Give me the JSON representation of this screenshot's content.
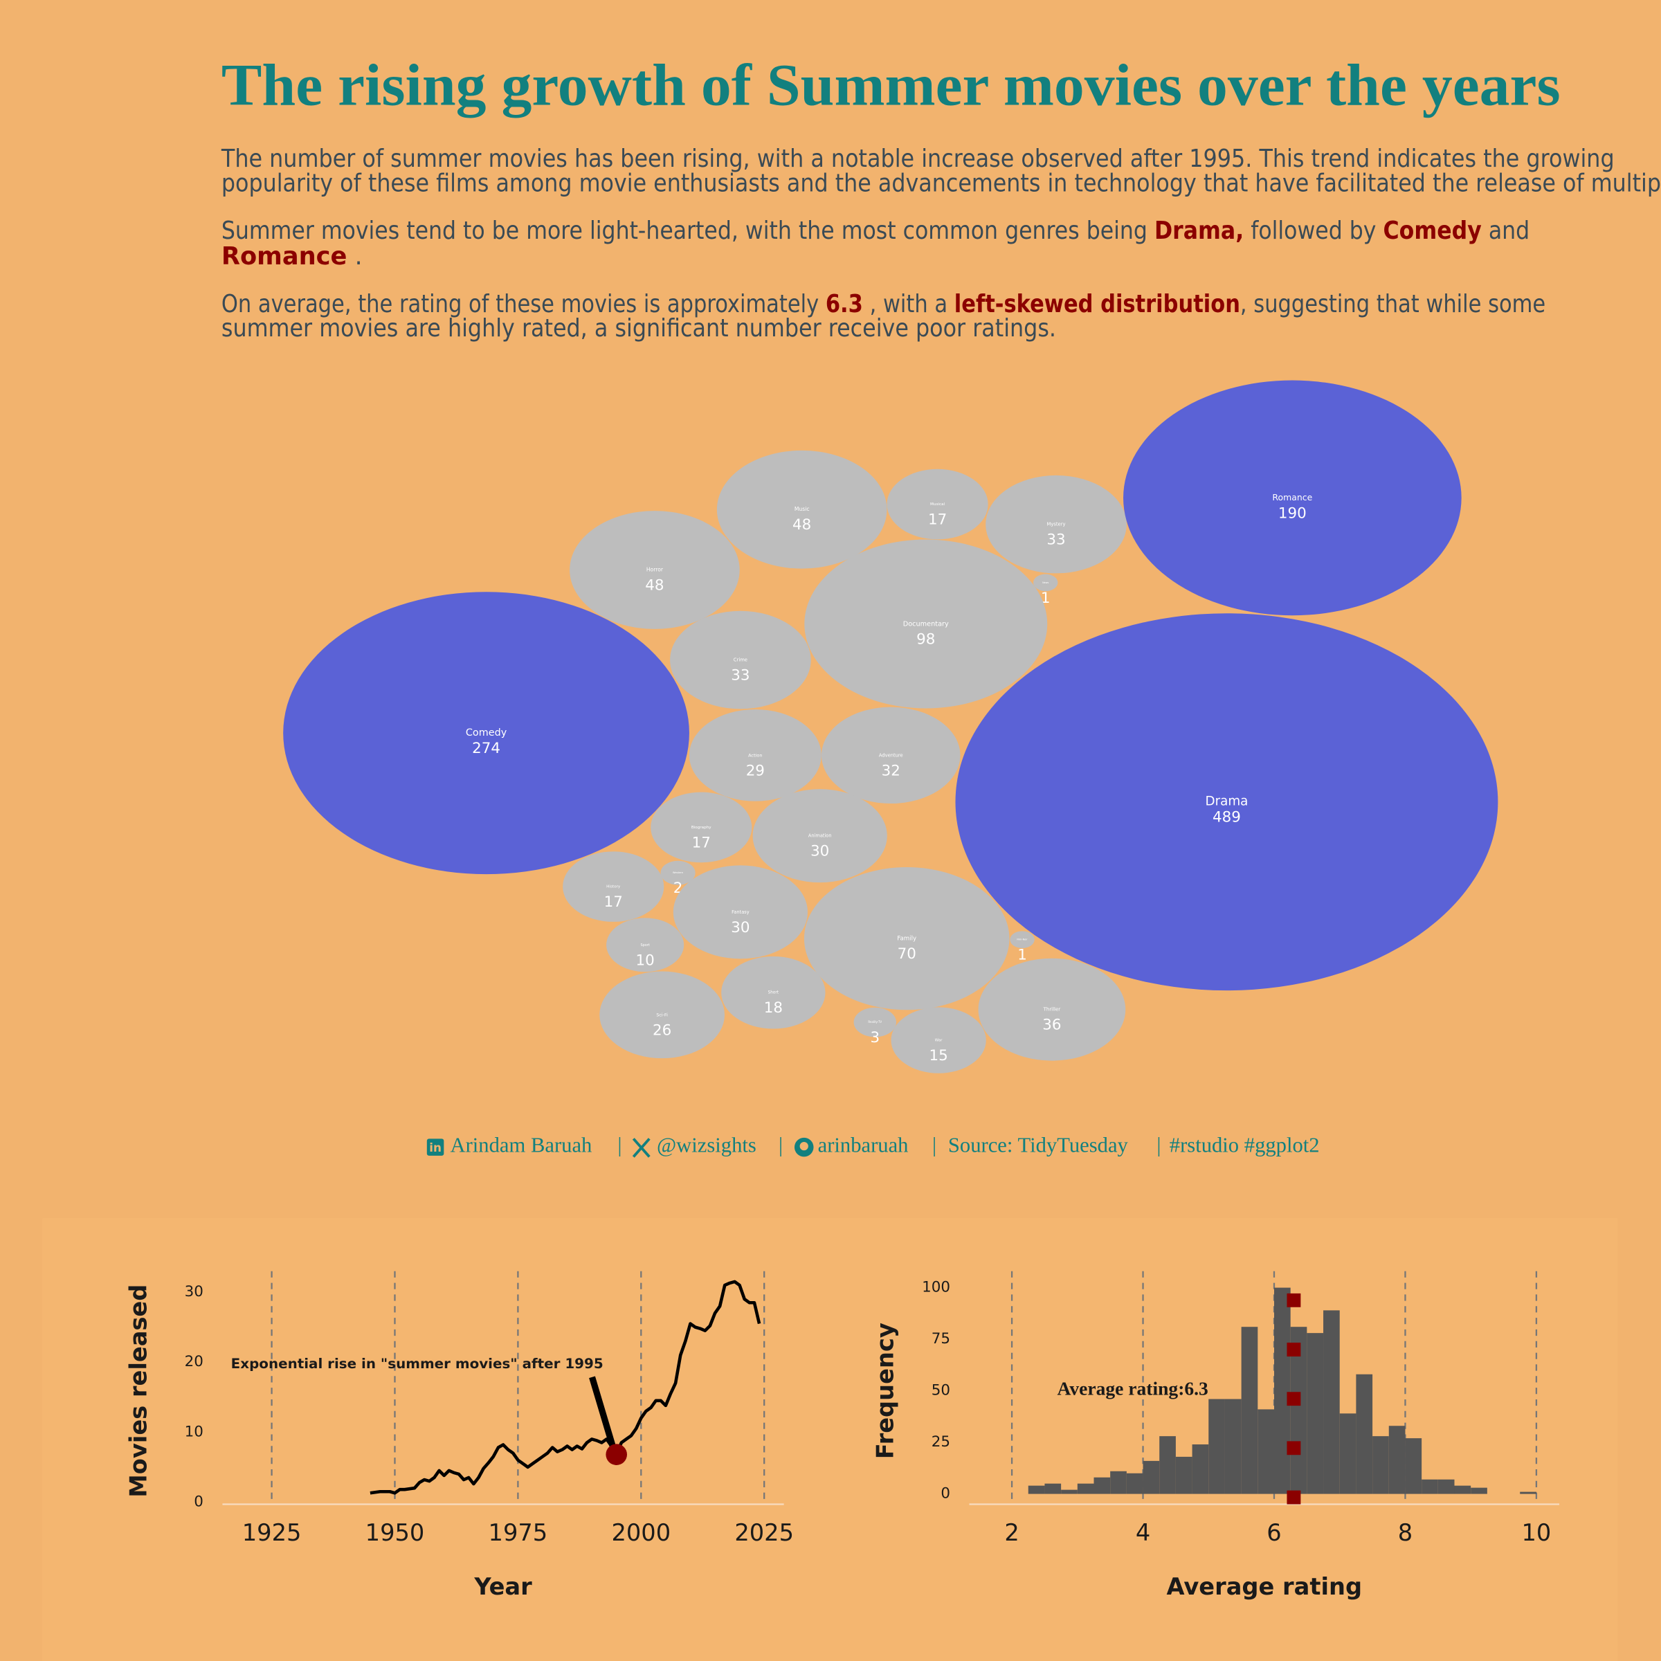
{
  "header": {
    "title": "The rising growth of Summer movies over the years",
    "highlight_color": "#8b0000",
    "paragraphs": [
      [
        [
          {
            "text": "The number of summer movies has been rising, with a notable increase observed after 1995. This trend indicates the growing",
            "highlight": false
          }
        ],
        [
          {
            "text": "popularity of these films among movie enthusiasts and the advancements in technology that have facilitated the release of multip",
            "highlight": false
          }
        ]
      ],
      [
        [
          {
            "text": "Summer movies tend to be more light-hearted, with the most common genres being ",
            "highlight": false
          },
          {
            "text": "Drama,",
            "highlight": true
          },
          {
            "text": " followed by ",
            "highlight": false
          },
          {
            "text": "Comedy",
            "highlight": true
          },
          {
            "text": " and",
            "highlight": false
          }
        ],
        [
          {
            "text": "Romance",
            "highlight": true
          },
          {
            "text": "   .",
            "highlight": false
          }
        ]
      ],
      [
        [
          {
            "text": "On average, the rating of these movies is approximately ",
            "highlight": false
          },
          {
            "text": "6.3",
            "highlight": true
          },
          {
            "text": " , with a ",
            "highlight": false
          },
          {
            "text": "left-skewed distribution",
            "highlight": true
          },
          {
            "text": ", suggesting that while some",
            "highlight": false
          }
        ],
        [
          {
            "text": "summer movies are highly rated, a significant number receive poor ratings.",
            "highlight": false
          }
        ]
      ]
    ]
  },
  "chart_data": [
    {
      "type": "bubble",
      "categories": [
        "Music",
        "Horror",
        "Musical",
        "Mystery",
        "Romance",
        "News",
        "Documentary",
        "Crime",
        "Comedy",
        "Action",
        "Adventure",
        "Drama",
        "Biography",
        "Animation",
        "History",
        "Western",
        "Fantasy",
        "Family",
        "Film-Noir",
        "Sport",
        "Sci-Fi",
        "Short",
        "Reality-TV",
        "War",
        "Thriller"
      ],
      "values": [
        48,
        48,
        17,
        33,
        190,
        1,
        98,
        33,
        274,
        29,
        32,
        489,
        17,
        30,
        17,
        2,
        30,
        70,
        1,
        10,
        26,
        18,
        3,
        15,
        36
      ],
      "colors": [
        "#bdbdbd",
        "#bdbdbd",
        "#bdbdbd",
        "#bdbdbd",
        "#5b62d6",
        "#bdbdbd",
        "#bdbdbd",
        "#bdbdbd",
        "#5b62d6",
        "#bdbdbd",
        "#bdbdbd",
        "#5b62d6",
        "#bdbdbd",
        "#bdbdbd",
        "#bdbdbd",
        "#bdbdbd",
        "#bdbdbd",
        "#bdbdbd",
        "#bdbdbd",
        "#bdbdbd",
        "#bdbdbd",
        "#bdbdbd",
        "#bdbdbd",
        "#bdbdbd",
        "#bdbdbd"
      ]
    },
    {
      "type": "line",
      "xlabel": "Year",
      "ylabel": "Movies released",
      "color": "#000000",
      "annotation": "Exponential rise in \"summer movies\" after 1995",
      "highlight_x": 1995,
      "highlight_color": "#8b0000",
      "x": [
        1945,
        1946,
        1947,
        1948,
        1949,
        1950,
        1951,
        1952,
        1953,
        1954,
        1955,
        1956,
        1957,
        1958,
        1959,
        1960,
        1961,
        1962,
        1963,
        1964,
        1965,
        1966,
        1967,
        1968,
        1969,
        1970,
        1971,
        1972,
        1973,
        1974,
        1975,
        1976,
        1977,
        1978,
        1979,
        1980,
        1981,
        1982,
        1983,
        1984,
        1985,
        1986,
        1987,
        1988,
        1989,
        1990,
        1991,
        1992,
        1993,
        1994,
        1995,
        1996,
        1997,
        1998,
        1999,
        2000,
        2001,
        2002,
        2003,
        2004,
        2005,
        2006,
        2007,
        2008,
        2009,
        2010,
        2011,
        2012,
        2013,
        2014,
        2015,
        2016,
        2017,
        2018,
        2019,
        2020,
        2021,
        2022,
        2023,
        2024
      ],
      "values": [
        1.3,
        1.4,
        1.5,
        1.5,
        1.5,
        1.3,
        1.8,
        1.8,
        1.9,
        2.0,
        2.8,
        3.2,
        3.0,
        3.5,
        4.5,
        3.8,
        4.5,
        4.2,
        4.0,
        3.2,
        3.5,
        2.6,
        3.5,
        4.8,
        5.6,
        6.5,
        7.8,
        8.2,
        7.5,
        7.0,
        6.0,
        5.5,
        5.0,
        5.5,
        6.0,
        6.5,
        7.0,
        7.8,
        7.2,
        7.5,
        8.0,
        7.5,
        8.0,
        7.6,
        8.5,
        9.0,
        8.8,
        8.5,
        9.0,
        8.0,
        6.8,
        8.5,
        9.0,
        9.5,
        10.5,
        12,
        13,
        13.5,
        14.5,
        14.5,
        13.8,
        15.5,
        17,
        21,
        23,
        25.5,
        25,
        24.8,
        24.5,
        25.2,
        27,
        28,
        31,
        31.3,
        31.5,
        31,
        29,
        28.5,
        28.5,
        25.5
      ],
      "xlim": [
        1915,
        2029
      ],
      "ylim": [
        0,
        33
      ],
      "xticks": [
        1925,
        1950,
        1975,
        2000,
        2025
      ],
      "yticks": [
        0,
        10,
        20,
        30
      ],
      "grid": "x"
    },
    {
      "type": "histogram",
      "xlabel": "Average rating",
      "ylabel": "Frequency",
      "color": "#555555",
      "bins": [
        2.25,
        2.5,
        2.75,
        3.0,
        3.25,
        3.5,
        3.75,
        4.0,
        4.25,
        4.5,
        4.75,
        5.0,
        5.25,
        5.5,
        5.75,
        6.0,
        6.25,
        6.5,
        6.75,
        7.0,
        7.25,
        7.5,
        7.75,
        8.0,
        8.25,
        8.5,
        8.75,
        9.0,
        9.25,
        9.5,
        9.75,
        10.0
      ],
      "counts": [
        4,
        5,
        2,
        5,
        8,
        11,
        10,
        16,
        28,
        18,
        24,
        46,
        46,
        81,
        41,
        100,
        81,
        78,
        89,
        39,
        58,
        28,
        33,
        27,
        7,
        7,
        4,
        3,
        0,
        0,
        1
      ],
      "mean": 6.3,
      "mean_label": "Average rating:",
      "mean_color": "#8b0000",
      "xlim": [
        1.35,
        10.35
      ],
      "ylim": [
        -5,
        108
      ],
      "xticks": [
        2,
        4,
        6,
        8,
        10
      ],
      "yticks": [
        0,
        25,
        50,
        75,
        100
      ],
      "grid": "x"
    }
  ],
  "footer": {
    "credits": [
      "Arindam Baruah",
      "@wizsights",
      "arinbaruah",
      "Source: TidyTuesday",
      "#rstudio #ggplot2"
    ],
    "separator": "|"
  }
}
